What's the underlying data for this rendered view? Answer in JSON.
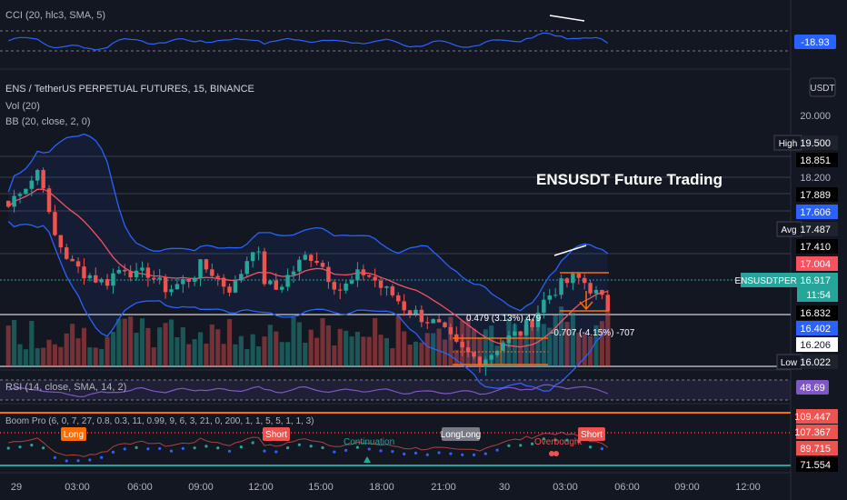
{
  "panes": {
    "cci": {
      "legend": "CCI (20, hlc3, SMA, 5)",
      "value_label": "-18.93"
    },
    "main": {
      "legend_symbol": "ENS / TetherUS PERPETUAL FUTURES, 15, BINANCE",
      "legend_vol": "Vol (20)",
      "legend_bb": "BB (20, close, 2, 0)",
      "currency": "USDT",
      "price_ticks": [
        "20.000",
        "18.200"
      ],
      "annotation_title": "ENSUSDT Future Trading",
      "measure_top": "0.479 (3.13%) 479",
      "measure_bottom": "-0.707 (-4.15%) -707"
    },
    "rsi": {
      "legend": "RSI (14, close, SMA, 14, 2)",
      "value_label": "48.69"
    },
    "boom": {
      "legend": "Boom Pro (6, 0, 7, 27, 0.8, 0.3, 11, 0.99, 9, 6, 3, 21, 0, 200, 1, 1, 5, 5, 1, 1, 3)",
      "tags": {
        "long": "Long",
        "short1": "Short",
        "longlong": "LongLong",
        "short2": "Short"
      },
      "texts": {
        "continuation": "Continuation",
        "overbought": "Overbought"
      },
      "value_labels": [
        "109.447",
        "107.367",
        "89.715",
        "71.554"
      ]
    }
  },
  "price_labels": {
    "high_tag": "High",
    "high_value": "19.500",
    "v18851": "18.851",
    "v17889": "17.889",
    "v17606": "17.606",
    "avg_tag": "Avg",
    "avg_value": "17.487",
    "v17410": "17.410",
    "v17004": "17.004",
    "symbol_tag": "ENSUSDTPERP",
    "last_price": "16.917",
    "countdown": "11:54",
    "v16832": "16.832",
    "v16402": "16.402",
    "v16206": "16.206",
    "low_tag": "Low",
    "low_value": "16.022"
  },
  "time_axis": [
    "29",
    "03:00",
    "06:00",
    "09:00",
    "12:00",
    "15:00",
    "18:00",
    "21:00",
    "30",
    "03:00",
    "06:00",
    "09:00",
    "12:00"
  ],
  "colors": {
    "background": "#131722",
    "up": "#26a69a",
    "down": "#ef5350",
    "bb": "#2962ff",
    "basis": "#f7525f",
    "cci": "#2962ff",
    "rsi": "#7e57c2",
    "accent_orange": "#ff6d00"
  },
  "chart_data": {
    "type": "candlestick",
    "symbol": "ENSUSDTPERP",
    "interval_minutes": 15,
    "y_range": [
      15.9,
      20.4
    ],
    "close_path": [
      18.6,
      18.9,
      19.0,
      19.3,
      18.2,
      17.9,
      17.6,
      17.5,
      17.4,
      17.3,
      17.5,
      17.6,
      17.4,
      17.5,
      17.3,
      17.2,
      17.3,
      17.4,
      17.6,
      17.5,
      17.3,
      17.2,
      17.6,
      18.0,
      17.3,
      17.2,
      17.4,
      17.6,
      17.8,
      17.7,
      17.4,
      17.2,
      17.3,
      17.5,
      17.4,
      17.2,
      17.1,
      16.9,
      16.8,
      16.7,
      16.6,
      16.4,
      16.2,
      16.1,
      16.0,
      16.1,
      16.3,
      16.4,
      16.5,
      16.7,
      17.0,
      17.2,
      17.3,
      17.4,
      17.3,
      17.1,
      16.9
    ],
    "price_lines": [
      19.5,
      18.851,
      18.2,
      17.889,
      17.606,
      17.487,
      17.41,
      17.004,
      16.917,
      16.832,
      16.402,
      16.206,
      16.022
    ],
    "high": 19.5,
    "low": 16.022,
    "average": 17.487,
    "last": 16.917
  }
}
